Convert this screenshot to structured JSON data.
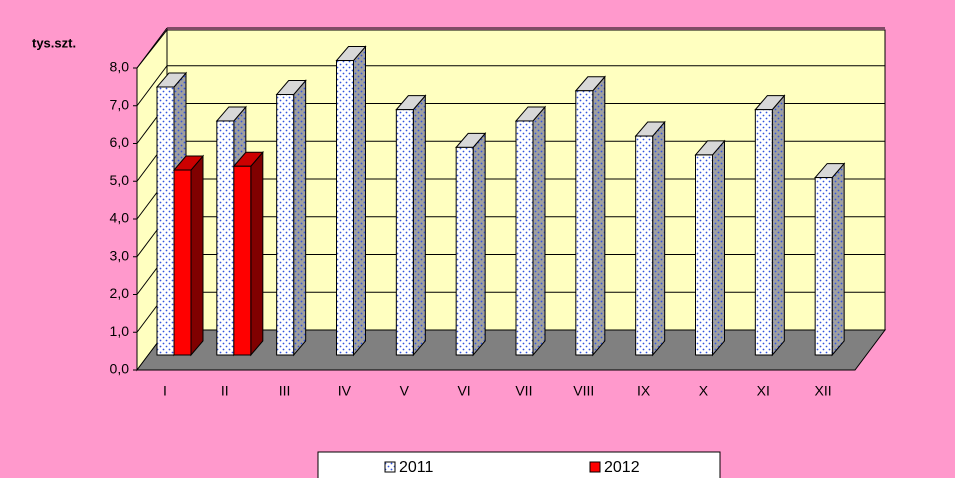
{
  "chart_data": {
    "type": "bar3d",
    "y_label": "tys.szt.",
    "categories": [
      "I",
      "II",
      "III",
      "IV",
      "V",
      "VI",
      "VII",
      "VIII",
      "IX",
      "X",
      "XI",
      "XII"
    ],
    "series": [
      {
        "name": "2011",
        "color": "#ffffff",
        "values": [
          7.1,
          6.2,
          6.9,
          7.8,
          6.5,
          5.5,
          6.2,
          7.0,
          5.8,
          5.3,
          6.5,
          4.7
        ]
      },
      {
        "name": "2012",
        "color": "#ff0000",
        "values": [
          4.9,
          5.0,
          null,
          null,
          null,
          null,
          null,
          null,
          null,
          null,
          null,
          null
        ]
      }
    ],
    "ylim": [
      0,
      8
    ],
    "yticks": [
      {
        "value": 0,
        "label": "0,0"
      },
      {
        "value": 1,
        "label": "1,0"
      },
      {
        "value": 2,
        "label": "2,0"
      },
      {
        "value": 3,
        "label": "3,0"
      },
      {
        "value": 4,
        "label": "4,0"
      },
      {
        "value": 5,
        "label": "5,0"
      },
      {
        "value": 6,
        "label": "6,0"
      },
      {
        "value": 7,
        "label": "7,0"
      },
      {
        "value": 8,
        "label": "8,0"
      }
    ],
    "grid": true,
    "legend": "bottom"
  }
}
